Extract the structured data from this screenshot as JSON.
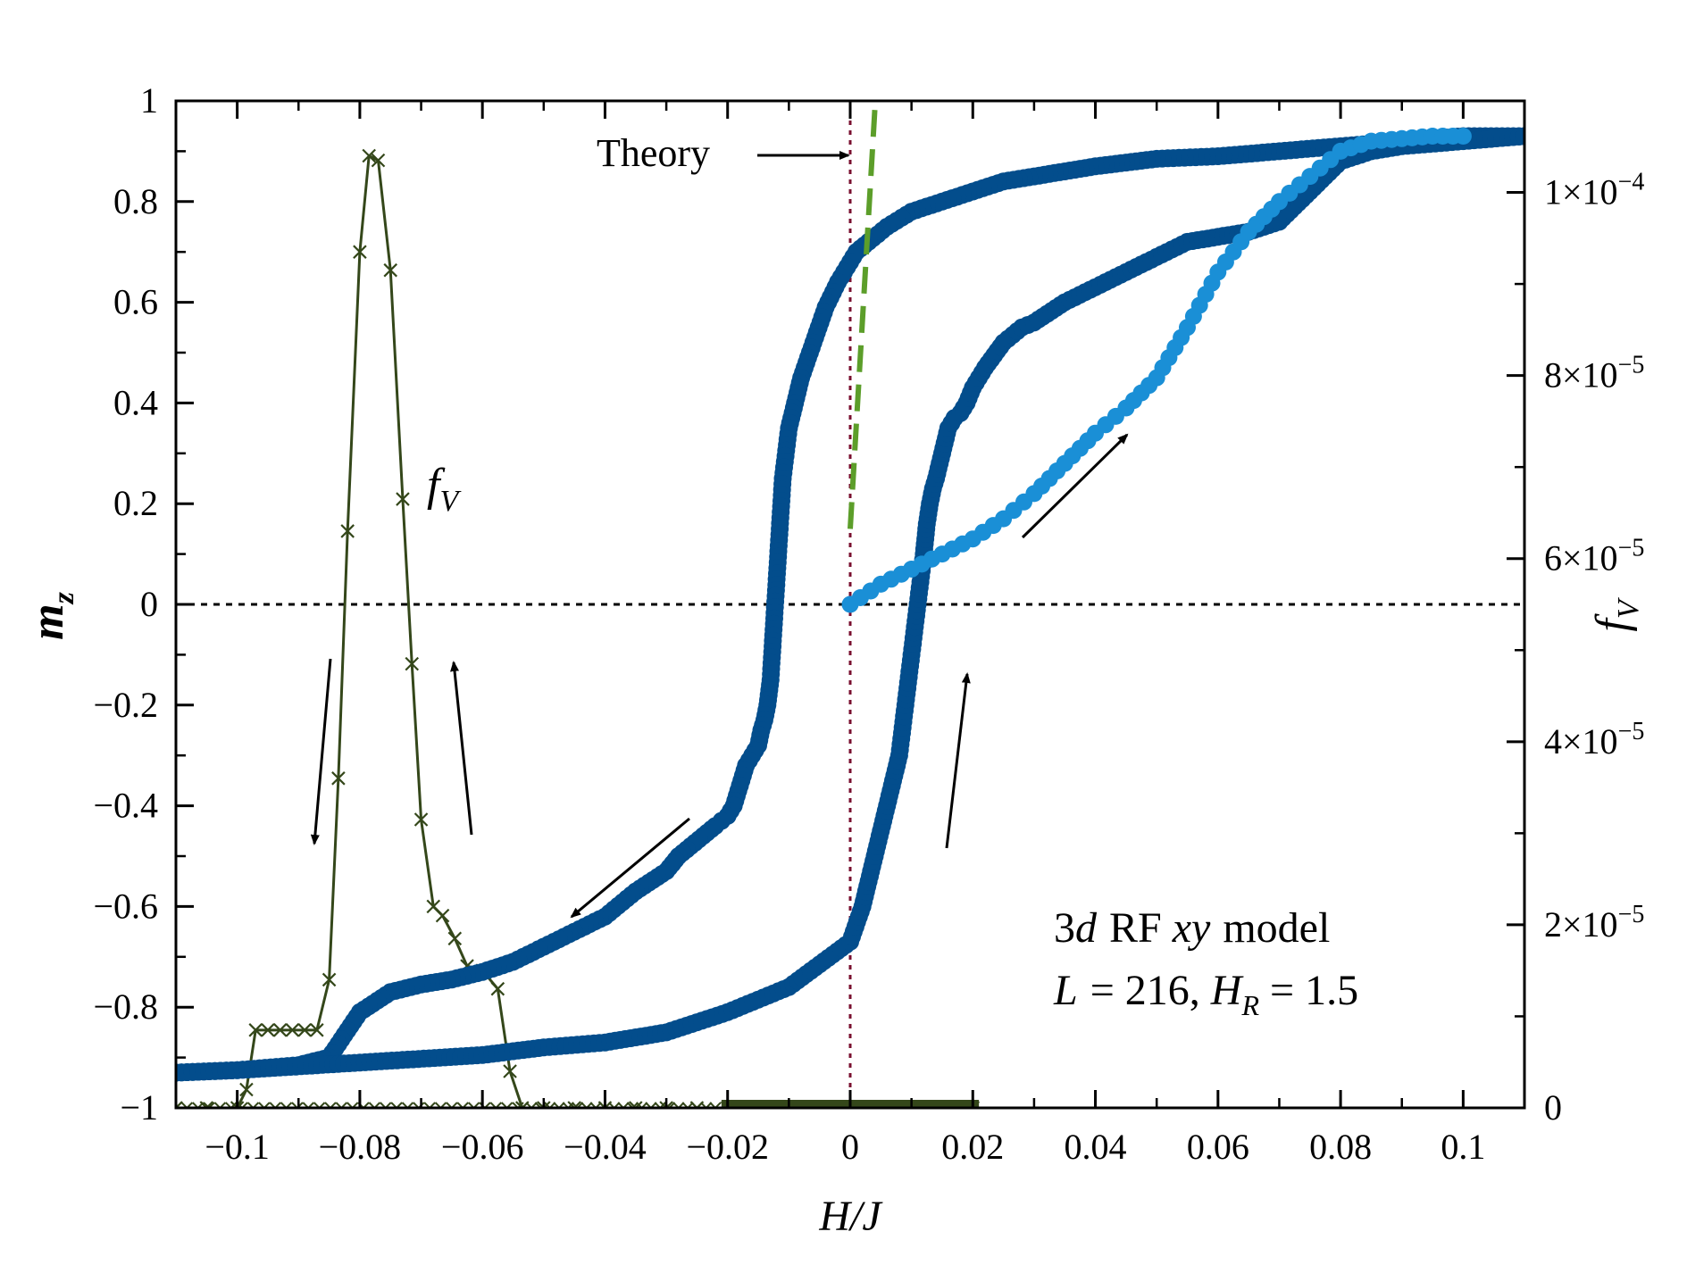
{
  "chart_data": {
    "type": "scatter",
    "xlabel": "H/J",
    "ylabel": "m_z",
    "y2label": "f_V",
    "xlim": [
      -0.11,
      0.11
    ],
    "ylim": [
      -1,
      1
    ],
    "y2lim": [
      0,
      0.00011
    ],
    "x_ticks": [
      -0.1,
      -0.08,
      -0.06,
      -0.04,
      -0.02,
      0,
      0.02,
      0.04,
      0.06,
      0.08,
      0.1
    ],
    "x_tick_labels": [
      "−0.1",
      "−0.08",
      "−0.06",
      "−0.04",
      "−0.02",
      "0",
      "0.02",
      "0.04",
      "0.06",
      "0.08",
      "0.1"
    ],
    "y_ticks": [
      1,
      0.8,
      0.6,
      0.4,
      0.2,
      0,
      -0.2,
      -0.4,
      -0.6,
      -0.8,
      -1
    ],
    "y_tick_labels": [
      "1",
      "0.8",
      "0.6",
      "0.4",
      "0.2",
      "0",
      "−0.2",
      "−0.4",
      "−0.6",
      "−0.8",
      "−1"
    ],
    "y2_ticks": [
      0.0001,
      8e-05,
      6e-05,
      4e-05,
      2e-05,
      0
    ],
    "y2_tick_labels": [
      {
        "base": "1×10",
        "exp": "−4"
      },
      {
        "base": "8×10",
        "exp": "−5"
      },
      {
        "base": "6×10",
        "exp": "−5"
      },
      {
        "base": "4×10",
        "exp": "−5"
      },
      {
        "base": "2×10",
        "exp": "−5"
      },
      {
        "base": "0",
        "exp": ""
      }
    ],
    "annotations": {
      "theory": "Theory",
      "fv_main": "f",
      "fv_sub": "V",
      "model_line1_a": "3",
      "model_line1_b": "d",
      "model_line1_c": "RF",
      "model_line1_d": "xy",
      "model_line1_e": "model",
      "model_line2_a": "L",
      "model_line2_b": "= 216,",
      "model_line2_c": "H",
      "model_line2_d": "R",
      "model_line2_e": "= 1.5",
      "ylabel_main": "m",
      "ylabel_sub": "z",
      "xlabel": "H/J",
      "y2label_main": "f",
      "y2label_sub": "V"
    },
    "colors": {
      "hysteresis": "#034d8c",
      "virgin": "#1a8fd6",
      "fv": "#34471a",
      "theory": "#5c9e2a",
      "zero_vertical": "#7a1030"
    },
    "series": [
      {
        "name": "descending branch",
        "axis": "left",
        "x": [
          0.11,
          0.1,
          0.09,
          0.08,
          0.07,
          0.06,
          0.05,
          0.04,
          0.03,
          0.025,
          0.02,
          0.015,
          0.01,
          0.006,
          0.003,
          0.001,
          0,
          -0.002,
          -0.004,
          -0.006,
          -0.008,
          -0.009,
          -0.01,
          -0.011,
          -0.0115,
          -0.012,
          -0.0125,
          -0.013,
          -0.0135,
          -0.014,
          -0.0145,
          -0.015,
          -0.016,
          -0.017,
          -0.018,
          -0.019,
          -0.02,
          -0.021,
          -0.022,
          -0.024,
          -0.026,
          -0.028,
          -0.03,
          -0.035,
          -0.04,
          -0.045,
          -0.05,
          -0.055,
          -0.06,
          -0.065,
          -0.07,
          -0.075,
          -0.08,
          -0.085,
          -0.09,
          -0.1,
          -0.11
        ],
        "y": [
          0.93,
          0.93,
          0.92,
          0.91,
          0.9,
          0.89,
          0.885,
          0.87,
          0.85,
          0.84,
          0.82,
          0.8,
          0.78,
          0.75,
          0.72,
          0.7,
          0.68,
          0.64,
          0.59,
          0.52,
          0.45,
          0.4,
          0.35,
          0.25,
          0.15,
          0.05,
          -0.05,
          -0.15,
          -0.2,
          -0.23,
          -0.25,
          -0.28,
          -0.3,
          -0.32,
          -0.36,
          -0.4,
          -0.42,
          -0.43,
          -0.44,
          -0.46,
          -0.48,
          -0.5,
          -0.53,
          -0.57,
          -0.62,
          -0.65,
          -0.68,
          -0.71,
          -0.73,
          -0.745,
          -0.755,
          -0.77,
          -0.81,
          -0.9,
          -0.915,
          -0.925,
          -0.93
        ]
      },
      {
        "name": "ascending branch",
        "axis": "left",
        "x": [
          -0.11,
          -0.1,
          -0.08,
          -0.06,
          -0.05,
          -0.04,
          -0.03,
          -0.02,
          -0.01,
          0,
          0.002,
          0.004,
          0.006,
          0.008,
          0.009,
          0.01,
          0.011,
          0.012,
          0.0125,
          0.013,
          0.0135,
          0.014,
          0.015,
          0.016,
          0.017,
          0.018,
          0.019,
          0.02,
          0.022,
          0.025,
          0.028,
          0.03,
          0.035,
          0.04,
          0.045,
          0.05,
          0.055,
          0.06,
          0.065,
          0.07,
          0.075,
          0.08,
          0.085,
          0.09,
          0.1,
          0.11
        ],
        "y": [
          -0.93,
          -0.925,
          -0.91,
          -0.895,
          -0.88,
          -0.87,
          -0.85,
          -0.81,
          -0.76,
          -0.67,
          -0.6,
          -0.5,
          -0.4,
          -0.3,
          -0.2,
          -0.1,
          0.0,
          0.1,
          0.16,
          0.2,
          0.23,
          0.25,
          0.3,
          0.35,
          0.37,
          0.38,
          0.4,
          0.43,
          0.47,
          0.52,
          0.55,
          0.56,
          0.6,
          0.63,
          0.66,
          0.69,
          0.72,
          0.73,
          0.74,
          0.76,
          0.82,
          0.88,
          0.9,
          0.91,
          0.92,
          0.93
        ]
      },
      {
        "name": "virgin curve",
        "axis": "left",
        "x": [
          0,
          0.005,
          0.01,
          0.015,
          0.02,
          0.025,
          0.03,
          0.035,
          0.04,
          0.045,
          0.05,
          0.055,
          0.06,
          0.065,
          0.07,
          0.075,
          0.08,
          0.085,
          0.09,
          0.095,
          0.1
        ],
        "y": [
          0,
          0.04,
          0.07,
          0.1,
          0.13,
          0.17,
          0.22,
          0.28,
          0.34,
          0.39,
          0.45,
          0.55,
          0.66,
          0.74,
          0.8,
          0.85,
          0.9,
          0.92,
          0.925,
          0.93,
          0.93
        ]
      },
      {
        "name": "f_V",
        "axis": "right",
        "marker": "x",
        "x": [
          -0.11,
          -0.105,
          -0.1,
          -0.0985,
          -0.097,
          -0.095,
          -0.093,
          -0.091,
          -0.089,
          -0.087,
          -0.085,
          -0.0835,
          -0.082,
          -0.08,
          -0.0785,
          -0.077,
          -0.075,
          -0.073,
          -0.0715,
          -0.07,
          -0.068,
          -0.0665,
          -0.0645,
          -0.0625,
          -0.06,
          -0.0575,
          -0.0555,
          -0.0535,
          -0.05,
          -0.045,
          -0.04,
          -0.035,
          -0.03,
          -0.025,
          -0.02,
          -0.01,
          0,
          0.01,
          0.02
        ],
        "y": [
          0,
          0,
          0,
          2e-06,
          8.5e-06,
          8.5e-06,
          8.5e-06,
          8.5e-06,
          8.5e-06,
          8.5e-06,
          1.4e-05,
          3.6e-05,
          6.3e-05,
          9.35e-05,
          0.000104,
          0.0001035,
          9.15e-05,
          6.65e-05,
          4.85e-05,
          3.15e-05,
          2.2e-05,
          2.1e-05,
          1.85e-05,
          1.55e-05,
          1.5e-05,
          1.3e-05,
          4e-06,
          0,
          0,
          0,
          0,
          0,
          0,
          0,
          0,
          0,
          0,
          0,
          0
        ]
      },
      {
        "name": "Theory",
        "axis": "left",
        "style": "dashed",
        "x": [
          0,
          0.0041
        ],
        "y": [
          0.15,
          1.0
        ]
      }
    ]
  }
}
